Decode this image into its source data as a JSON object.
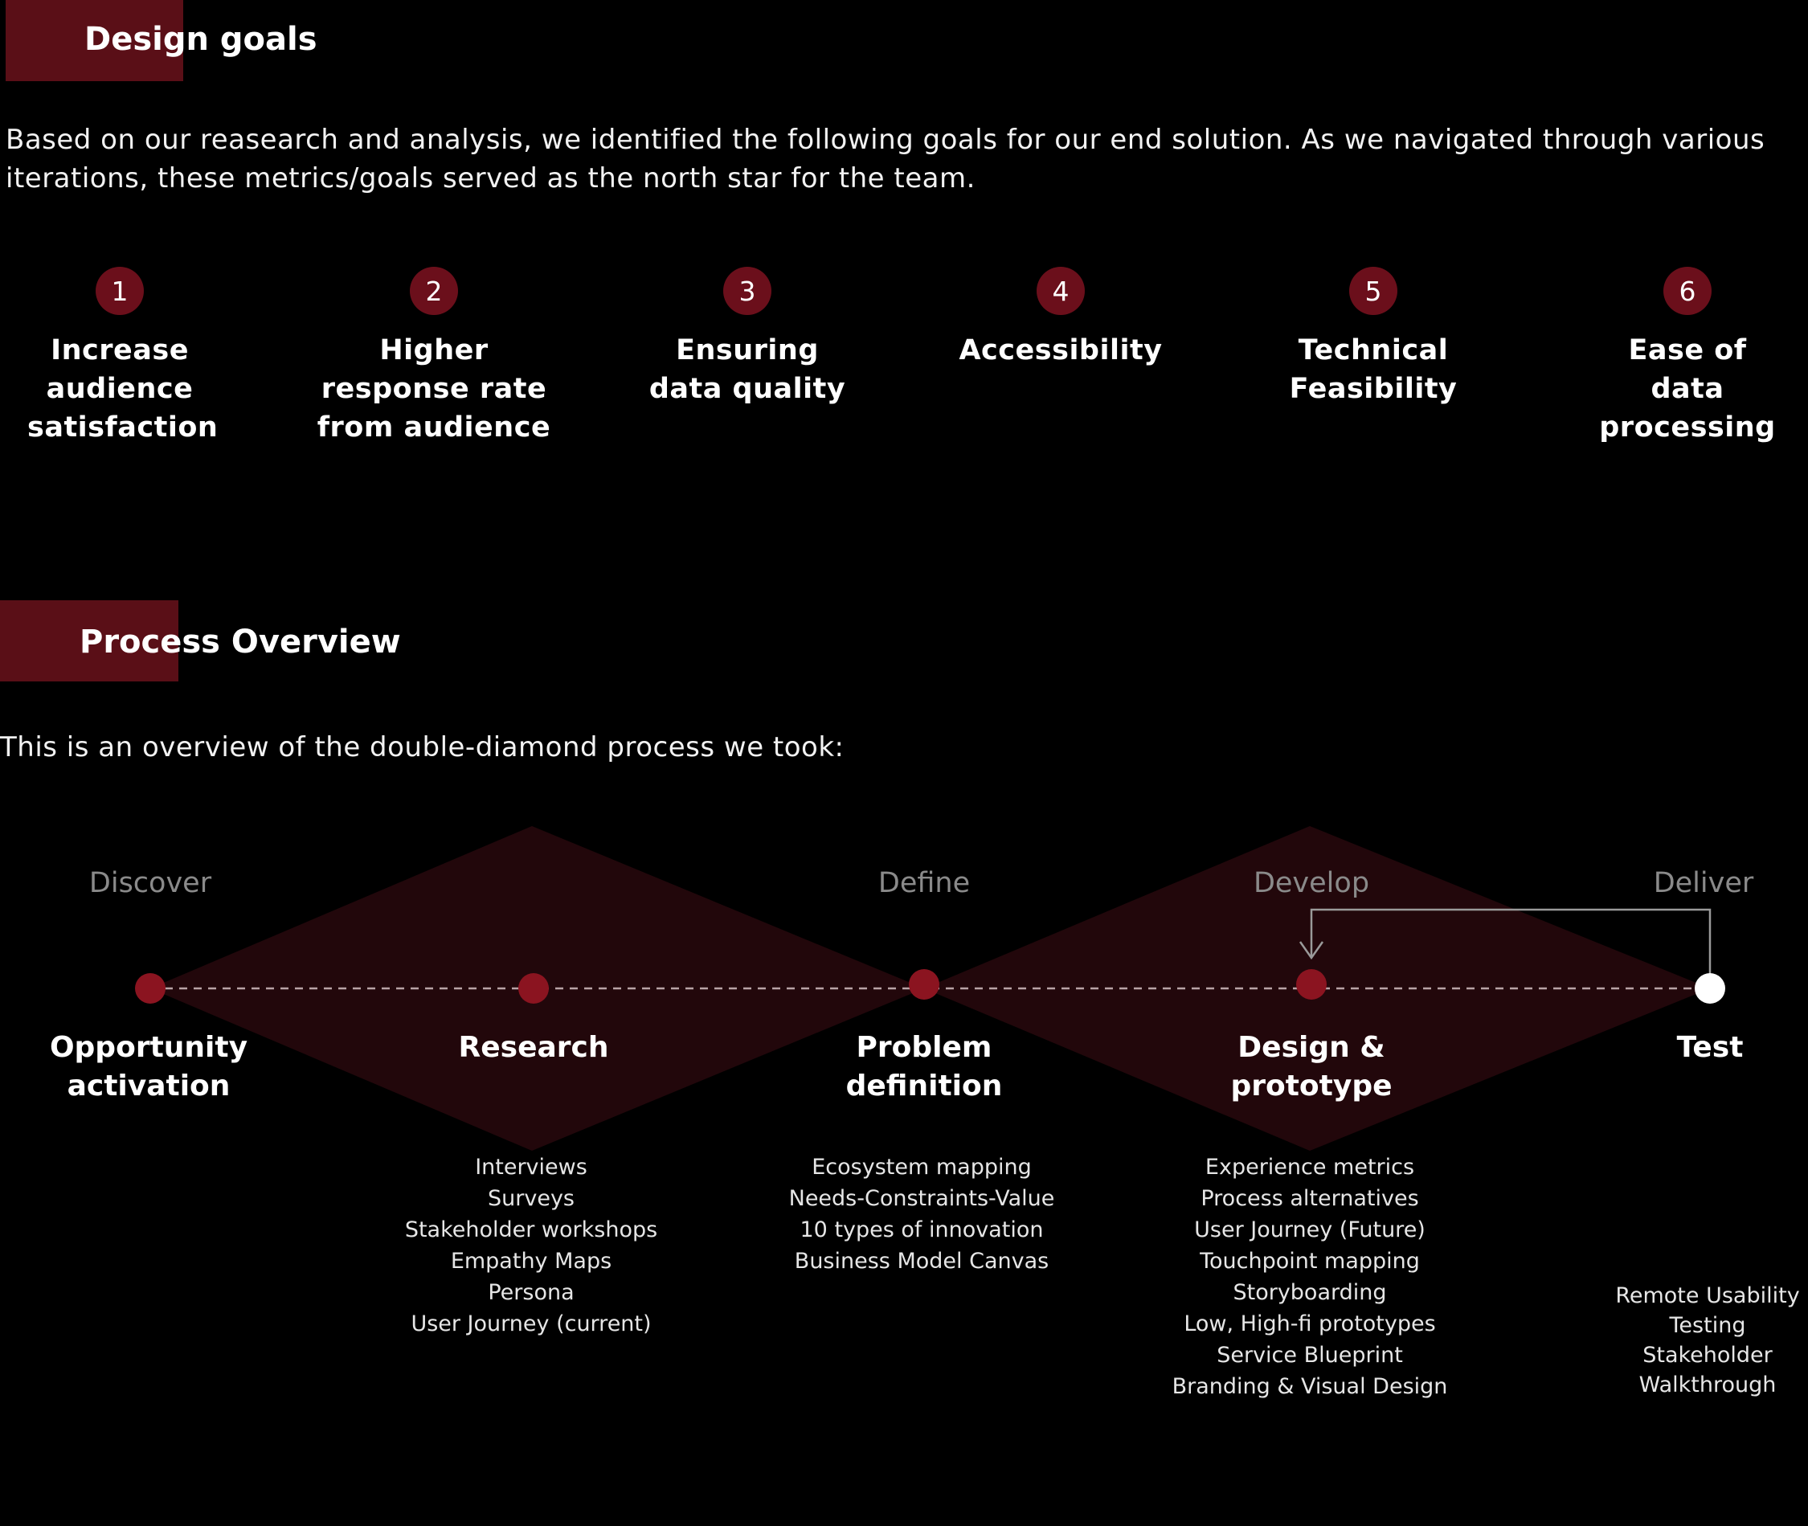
{
  "design_goals": {
    "title": "Design goals",
    "intro": "Based on our reasearch and analysis, we identified the following goals for our end solution. As we navigated through various iterations, these metrics/goals served as the north star for the team.",
    "goals": [
      {
        "number": "1",
        "label": "Increase audience satisfaction"
      },
      {
        "number": "2",
        "label": "Higher response rate from audience"
      },
      {
        "number": "3",
        "label": "Ensuring data quality"
      },
      {
        "number": "4",
        "label": "Accessibility"
      },
      {
        "number": "5",
        "label": "Technical Feasibility"
      },
      {
        "number": "6",
        "label": "Ease of data processing"
      }
    ]
  },
  "process_overview": {
    "title": "Process Overview",
    "intro": "This is an overview of the double-diamond process we took:",
    "phases": [
      "Discover",
      "Define",
      "Develop",
      "Deliver"
    ],
    "steps": [
      {
        "label": "Opportunity activation",
        "methods": []
      },
      {
        "label": "Research",
        "methods": [
          "Interviews",
          "Surveys",
          "Stakeholder workshops",
          "Empathy Maps",
          "Persona",
          "User Journey (current)"
        ]
      },
      {
        "label": "Problem definition",
        "methods": [
          "Ecosystem mapping",
          "Needs-Constraints-Value",
          "10 types of innovation",
          "Business Model Canvas"
        ]
      },
      {
        "label": "Design & prototype",
        "methods": [
          "Experience metrics",
          "Process alternatives",
          "User Journey (Future)",
          "Touchpoint mapping",
          "Storyboarding",
          "Low, High-fi prototypes",
          "Service Blueprint",
          "Branding & Visual Design"
        ]
      },
      {
        "label": "Test",
        "methods": [
          "Remote Usability Testing",
          "Stakeholder Walkthrough"
        ]
      }
    ]
  },
  "colors": {
    "accent": "#6b0f1b",
    "header_block": "#5a0f17",
    "diamond_fill": "#22070b",
    "node": "#8b1420",
    "test_node": "#ffffff",
    "phase_text": "#8a8a8a"
  }
}
